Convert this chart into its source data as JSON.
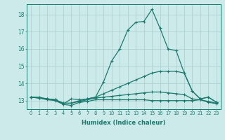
{
  "xlabel": "Humidex (Indice chaleur)",
  "background_color": "#cceaea",
  "line_color": "#1a7a6e",
  "grid_color": "#aacccc",
  "xlim": [
    -0.5,
    23.5
  ],
  "ylim": [
    12.5,
    18.6
  ],
  "yticks": [
    13,
    14,
    15,
    16,
    17,
    18
  ],
  "xticks": [
    0,
    1,
    2,
    3,
    4,
    5,
    6,
    7,
    8,
    9,
    10,
    11,
    12,
    13,
    14,
    15,
    16,
    17,
    18,
    19,
    20,
    21,
    22,
    23
  ],
  "lines": [
    {
      "x": [
        0,
        1,
        2,
        3,
        4,
        5,
        6,
        7,
        8,
        9,
        10,
        11,
        12,
        13,
        14,
        15,
        16,
        17,
        18,
        19,
        20,
        21,
        22,
        23
      ],
      "y": [
        13.2,
        13.2,
        13.1,
        13.05,
        12.8,
        13.1,
        13.05,
        13.1,
        13.2,
        14.1,
        15.3,
        16.0,
        17.1,
        17.55,
        17.6,
        18.3,
        17.2,
        16.0,
        15.9,
        14.6,
        13.55,
        13.1,
        13.2,
        12.9
      ]
    },
    {
      "x": [
        0,
        1,
        2,
        3,
        4,
        5,
        6,
        7,
        8,
        9,
        10,
        11,
        12,
        13,
        14,
        15,
        16,
        17,
        18,
        19,
        20,
        21,
        22,
        23
      ],
      "y": [
        13.2,
        13.15,
        13.1,
        13.05,
        12.85,
        12.85,
        13.0,
        13.1,
        13.2,
        13.4,
        13.6,
        13.8,
        14.0,
        14.2,
        14.4,
        14.6,
        14.7,
        14.7,
        14.7,
        14.6,
        13.55,
        13.1,
        13.2,
        12.9
      ]
    },
    {
      "x": [
        0,
        1,
        2,
        3,
        4,
        5,
        6,
        7,
        8,
        9,
        10,
        11,
        12,
        13,
        14,
        15,
        16,
        17,
        18,
        19,
        20,
        21,
        22,
        23
      ],
      "y": [
        13.2,
        13.15,
        13.1,
        13.05,
        12.85,
        12.85,
        12.95,
        13.05,
        13.15,
        13.2,
        13.25,
        13.3,
        13.35,
        13.4,
        13.45,
        13.5,
        13.5,
        13.45,
        13.4,
        13.35,
        13.1,
        13.05,
        12.95,
        12.85
      ]
    },
    {
      "x": [
        0,
        1,
        2,
        3,
        4,
        5,
        6,
        7,
        8,
        9,
        10,
        11,
        12,
        13,
        14,
        15,
        16,
        17,
        18,
        19,
        20,
        21,
        22,
        23
      ],
      "y": [
        13.2,
        13.15,
        13.05,
        13.0,
        12.78,
        12.72,
        12.9,
        12.95,
        13.05,
        13.05,
        13.05,
        13.05,
        13.05,
        13.05,
        13.05,
        13.0,
        13.0,
        13.0,
        13.0,
        13.0,
        13.0,
        13.05,
        12.9,
        12.82
      ]
    }
  ]
}
